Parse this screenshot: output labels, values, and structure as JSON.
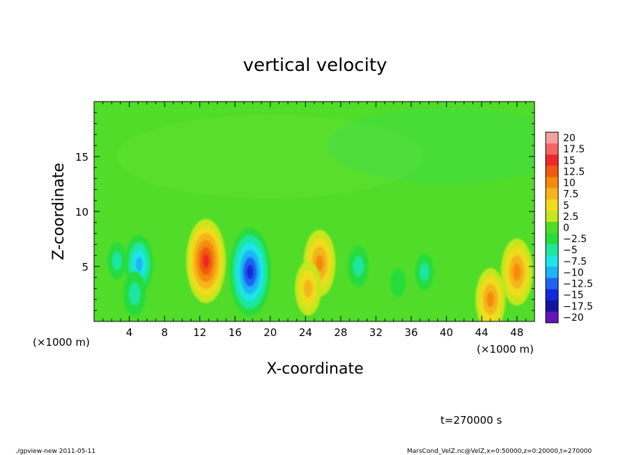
{
  "chart_data": {
    "type": "heatmap",
    "title": "vertical velocity",
    "xlabel": "X-coordinate",
    "ylabel": "Z-coordinate",
    "x_unit_label": "(×1000 m)",
    "x_unit_label_right": "(×1000 m)",
    "xlim": [
      0,
      50
    ],
    "ylim": [
      0,
      20
    ],
    "x_ticks": [
      4,
      8,
      12,
      16,
      20,
      24,
      28,
      32,
      36,
      40,
      44,
      48
    ],
    "x_tick_labels": [
      "4",
      "8",
      "12",
      "16",
      "20",
      "24",
      "28",
      "32",
      "36",
      "40",
      "44",
      "48"
    ],
    "y_ticks": [
      5,
      10,
      15
    ],
    "y_tick_labels": [
      "5",
      "10",
      "15"
    ],
    "colorbar": {
      "levels": [
        20,
        17.5,
        15,
        12.5,
        10,
        7.5,
        5,
        2.5,
        0,
        -2.5,
        -5,
        -7.5,
        -10,
        -12.5,
        -15,
        -17.5,
        -20
      ],
      "labels": [
        "20",
        "17.5",
        "15",
        "12.5",
        "10",
        "7.5",
        "5",
        "2.5",
        "0",
        "−2.5",
        "−5",
        "−7.5",
        "−10",
        "−12.5",
        "−15",
        "−17.5",
        "−20"
      ],
      "colors": [
        "#f4a0a0",
        "#f56464",
        "#ee2828",
        "#f05a10",
        "#f58a10",
        "#f5b41e",
        "#f0dc1e",
        "#c8e61e",
        "#50dc28",
        "#28dc3c",
        "#1ee6a0",
        "#1ee6e6",
        "#1eb4f5",
        "#1e64f0",
        "#1428dc",
        "#1414a0",
        "#6414b4"
      ]
    },
    "features": [
      {
        "x": 2.6,
        "z": 5.5,
        "w": -4
      },
      {
        "x": 5.1,
        "z": 5.2,
        "w": -9
      },
      {
        "x": 4.6,
        "z": 2.5,
        "w": -6
      },
      {
        "x": 12.7,
        "z": 5.5,
        "w": 15
      },
      {
        "x": 17.7,
        "z": 4.5,
        "w": -16
      },
      {
        "x": 25.6,
        "z": 5.3,
        "w": 11
      },
      {
        "x": 24.3,
        "z": 3.0,
        "w": 8
      },
      {
        "x": 30.0,
        "z": 5.0,
        "w": -5
      },
      {
        "x": 34.5,
        "z": 3.5,
        "w": -2
      },
      {
        "x": 37.5,
        "z": 4.5,
        "w": -4
      },
      {
        "x": 45.0,
        "z": 2.0,
        "w": 10
      },
      {
        "x": 48.0,
        "z": 4.5,
        "w": 11
      }
    ],
    "grid": false
  },
  "footer": {
    "time_label": "t=270000 s",
    "program_info": "./gpview-new  2011-05-11",
    "file_info": "MarsCond_VelZ.nc@VelZ,x=0:50000,z=0:20000,t=270000"
  }
}
